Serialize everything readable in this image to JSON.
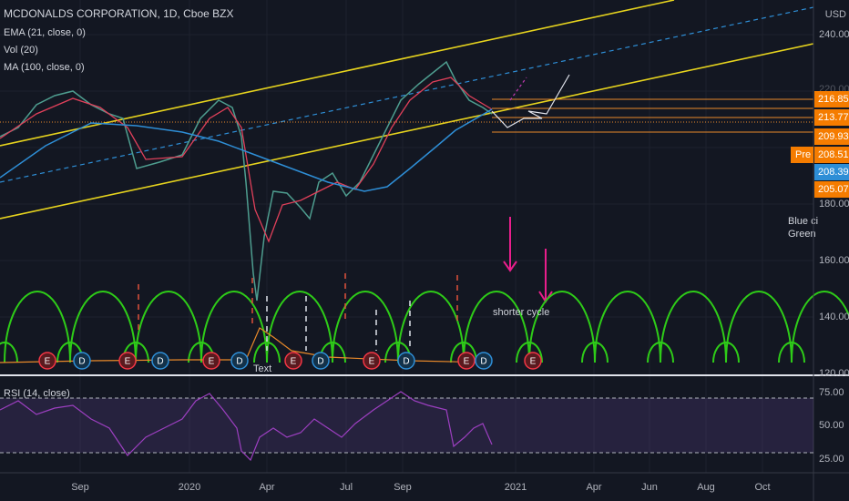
{
  "header": {
    "title": "MCDONALDS CORPORATION, 1D, Cboe BZX",
    "indicators": [
      "EMA (21, close, 0)",
      "Vol (20)",
      "MA (100, close, 0)"
    ],
    "currency": "USD"
  },
  "price_axis": [
    "240.00",
    "220.00",
    "180.00",
    "160.00",
    "140.00",
    "120.00"
  ],
  "price_tags": [
    "216.85",
    "213.77",
    "209.93",
    "208.51",
    "208.39",
    "205.07"
  ],
  "premarket": "Pre",
  "rsi": {
    "title": "RSI (14, close)",
    "axis": [
      "75.00",
      "50.00",
      "25.00"
    ]
  },
  "time_axis": [
    "Sep",
    "2020",
    "Apr",
    "Jul",
    "Sep",
    "2021",
    "Apr",
    "Jun",
    "Aug",
    "Oct"
  ],
  "annotations": [
    "Blue ci",
    "Green",
    "shorter cycle",
    "Text"
  ],
  "events": [
    "E",
    "D",
    "E",
    "D",
    "E",
    "D",
    "E",
    "D",
    "E",
    "D",
    "E",
    "D",
    "E"
  ]
}
